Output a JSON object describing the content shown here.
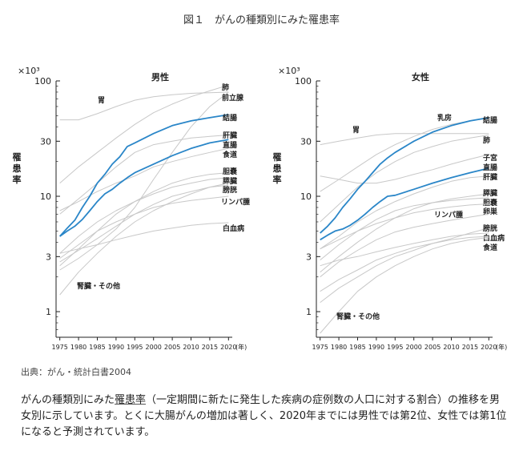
{
  "title": "図１　がんの種類別にみた罹患率",
  "source": "出典：がん・統計白書2004",
  "caption": {
    "before": "がんの種類別にみた",
    "term": "罹患率",
    "after": "（一定期間に新たに発生した疾病の症例数の人口に対する割合）の推移を男女別に示しています。とくに大腸がんの増加は著しく、2020年までには男性では第2位、女性では第1位になると予測されています。"
  },
  "colors": {
    "highlight": "#2a86c8",
    "other": "#c8c8c8",
    "axis": "#222222"
  },
  "chart_data": [
    {
      "type": "line",
      "title": "男性",
      "ylabel": "罹患率",
      "yunit": "×10³",
      "xunit": "(年)",
      "yscale": "log",
      "ylim": [
        0.6,
        100
      ],
      "xlim": [
        1974,
        2021
      ],
      "yticks": [
        1,
        3,
        10,
        30,
        100
      ],
      "xticks": [
        1975,
        1980,
        1985,
        1990,
        1995,
        2000,
        2005,
        2010,
        2015,
        2020
      ],
      "series": [
        {
          "name": "胃",
          "highlight": false,
          "x": [
            1975,
            1980,
            1985,
            1990,
            1995,
            2000,
            2005,
            2010,
            2015,
            2020
          ],
          "y": [
            46,
            46,
            52,
            60,
            68,
            73,
            76,
            78,
            79,
            80
          ]
        },
        {
          "name": "肺",
          "highlight": false,
          "x": [
            1975,
            1980,
            1985,
            1990,
            1995,
            2000,
            2005,
            2010,
            2015,
            2020
          ],
          "y": [
            13,
            18,
            24,
            32,
            42,
            53,
            63,
            73,
            82,
            92
          ]
        },
        {
          "name": "前立腺",
          "highlight": false,
          "x": [
            1975,
            1980,
            1985,
            1990,
            1995,
            2000,
            2005,
            2010,
            2015,
            2020
          ],
          "y": [
            2.3,
            2.9,
            3.8,
            5.2,
            8,
            14,
            24,
            40,
            60,
            80
          ]
        },
        {
          "name": "結腸",
          "highlight": true,
          "x": [
            1975,
            1977,
            1979,
            1981,
            1983,
            1985,
            1987,
            1989,
            1991,
            1993,
            1995,
            2000,
            2005,
            2010,
            2015,
            2020
          ],
          "y": [
            4.5,
            5.3,
            6.2,
            8,
            10,
            13,
            15.5,
            19,
            22,
            27,
            29,
            35,
            41,
            45,
            48,
            51
          ]
        },
        {
          "name": "肝臓",
          "highlight": false,
          "x": [
            1975,
            1980,
            1985,
            1990,
            1995,
            2000,
            2005,
            2010,
            2015,
            2020
          ],
          "y": [
            7,
            9.5,
            13,
            18,
            24,
            28,
            30,
            32,
            33,
            34
          ]
        },
        {
          "name": "直腸",
          "highlight": true,
          "x": [
            1975,
            1977,
            1979,
            1981,
            1983,
            1985,
            1987,
            1989,
            1991,
            1993,
            1995,
            2000,
            2005,
            2010,
            2015,
            2020
          ],
          "y": [
            4.5,
            5,
            5.5,
            6.3,
            7.5,
            9,
            10.5,
            11.5,
            13,
            14.5,
            16,
            19,
            22.5,
            26,
            29,
            31
          ]
        },
        {
          "name": "食道",
          "highlight": false,
          "x": [
            1975,
            1980,
            1985,
            1990,
            1995,
            2000,
            2005,
            2010,
            2015,
            2020
          ],
          "y": [
            7.5,
            9,
            11,
            13,
            15,
            18,
            20,
            22,
            24,
            26
          ]
        },
        {
          "name": "胆嚢",
          "highlight": false,
          "x": [
            1975,
            1980,
            1985,
            1990,
            1995,
            2000,
            2005,
            2010,
            2015,
            2020
          ],
          "y": [
            2.5,
            3.5,
            5,
            7,
            9,
            11,
            13,
            14.5,
            15.5,
            16
          ]
        },
        {
          "name": "膵臓",
          "highlight": false,
          "x": [
            1975,
            1980,
            1985,
            1990,
            1995,
            2000,
            2005,
            2010,
            2015,
            2020
          ],
          "y": [
            3.2,
            4.5,
            6,
            7.5,
            9,
            10.5,
            12,
            13,
            14,
            14.5
          ]
        },
        {
          "name": "膀胱",
          "highlight": false,
          "x": [
            1975,
            1980,
            1985,
            1990,
            1995,
            2000,
            2005,
            2010,
            2015,
            2020
          ],
          "y": [
            2.7,
            3.4,
            4.3,
            5.5,
            7,
            8.5,
            10,
            11,
            12,
            12.5
          ]
        },
        {
          "name": "リンパ腫",
          "highlight": false,
          "x": [
            1975,
            1980,
            1985,
            1990,
            1995,
            2000,
            2005,
            2010,
            2015,
            2020
          ],
          "y": [
            2.9,
            3.8,
            5,
            6,
            7,
            8,
            8.7,
            9.2,
            9.6,
            10
          ]
        },
        {
          "name": "白血病",
          "highlight": false,
          "x": [
            1975,
            1980,
            1985,
            1990,
            1995,
            2000,
            2005,
            2010,
            2015,
            2020
          ],
          "y": [
            3.2,
            3.5,
            3.8,
            4.2,
            4.6,
            5,
            5.3,
            5.6,
            5.8,
            5.9
          ]
        },
        {
          "name": "腎臓・その他",
          "highlight": false,
          "x": [
            1975,
            1980,
            1985,
            1990,
            1995,
            2000,
            2005,
            2010,
            2015,
            2020
          ],
          "y": [
            1.4,
            2.2,
            3.2,
            4.5,
            6,
            7.5,
            9,
            10.5,
            12,
            13
          ]
        }
      ]
    },
    {
      "type": "line",
      "title": "女性",
      "ylabel": "罹患率",
      "yunit": "×10³",
      "xunit": "(年)",
      "yscale": "log",
      "ylim": [
        0.6,
        100
      ],
      "xlim": [
        1974,
        2021
      ],
      "yticks": [
        1,
        3,
        10,
        30,
        100
      ],
      "xticks": [
        1975,
        1980,
        1985,
        1990,
        1995,
        2000,
        2005,
        2010,
        2015,
        2020
      ],
      "series": [
        {
          "name": "胃",
          "highlight": false,
          "x": [
            1975,
            1980,
            1985,
            1990,
            1995,
            2000,
            2005,
            2010,
            2015,
            2020
          ],
          "y": [
            28,
            30,
            32,
            34,
            35,
            35,
            35,
            35,
            35,
            35
          ]
        },
        {
          "name": "乳房",
          "highlight": false,
          "x": [
            1975,
            1980,
            1985,
            1990,
            1995,
            2000,
            2005,
            2010,
            2015,
            2020
          ],
          "y": [
            11,
            14,
            18,
            23,
            28,
            33,
            38,
            42,
            45,
            48
          ]
        },
        {
          "name": "結腸",
          "highlight": true,
          "x": [
            1975,
            1977,
            1979,
            1981,
            1983,
            1985,
            1987,
            1989,
            1991,
            1993,
            1995,
            2000,
            2005,
            2010,
            2015,
            2020
          ],
          "y": [
            4.8,
            5.5,
            6.5,
            8,
            9.5,
            11.5,
            13.5,
            16,
            19,
            21.5,
            24,
            30,
            36,
            41,
            45,
            48
          ]
        },
        {
          "name": "肺",
          "highlight": false,
          "x": [
            1975,
            1980,
            1985,
            1990,
            1995,
            2000,
            2005,
            2010,
            2015,
            2020
          ],
          "y": [
            6,
            8.5,
            12,
            16,
            20,
            24,
            27,
            30,
            32,
            34
          ]
        },
        {
          "name": "子宮",
          "highlight": false,
          "x": [
            1975,
            1980,
            1985,
            1990,
            1995,
            2000,
            2005,
            2010,
            2015,
            2020
          ],
          "y": [
            15,
            14,
            13,
            13,
            14,
            15.5,
            17,
            19,
            21,
            23
          ]
        },
        {
          "name": "直腸",
          "highlight": true,
          "x": [
            1975,
            1977,
            1979,
            1981,
            1983,
            1985,
            1987,
            1989,
            1991,
            1993,
            1995,
            2000,
            2005,
            2010,
            2015,
            2020
          ],
          "y": [
            4.2,
            4.6,
            5,
            5.2,
            5.6,
            6.2,
            7,
            8,
            9,
            10,
            10.2,
            11.5,
            13,
            14.5,
            16,
            17.5
          ]
        },
        {
          "name": "肝臓",
          "highlight": false,
          "x": [
            1975,
            1980,
            1985,
            1990,
            1995,
            2000,
            2005,
            2010,
            2015,
            2020
          ],
          "y": [
            3.5,
            4.5,
            6,
            7.5,
            9,
            10.5,
            12,
            13.5,
            14.5,
            15
          ]
        },
        {
          "name": "膵臓",
          "highlight": false,
          "x": [
            1975,
            1980,
            1985,
            1990,
            1995,
            2000,
            2005,
            2010,
            2015,
            2020
          ],
          "y": [
            2.2,
            3,
            4,
            5.2,
            6.5,
            7.8,
            8.8,
            9.5,
            10,
            10.5
          ]
        },
        {
          "name": "胆嚢",
          "highlight": false,
          "x": [
            1975,
            1980,
            1985,
            1990,
            1995,
            2000,
            2005,
            2010,
            2015,
            2020
          ],
          "y": [
            2.8,
            3.8,
            5,
            6.3,
            7.5,
            8.3,
            8.8,
            9.2,
            9.5,
            9.7
          ]
        },
        {
          "name": "卵巣",
          "highlight": false,
          "x": [
            1975,
            1980,
            1985,
            1990,
            1995,
            2000,
            2005,
            2010,
            2015,
            2020
          ],
          "y": [
            3.5,
            4.2,
            5,
            5.8,
            6.5,
            7.2,
            7.7,
            8.1,
            8.4,
            8.6
          ]
        },
        {
          "name": "リンパ腫",
          "highlight": false,
          "x": [
            1975,
            1980,
            1985,
            1990,
            1995,
            2000,
            2005,
            2010,
            2015,
            2020
          ],
          "y": [
            2,
            2.7,
            3.4,
            4.2,
            4.9,
            5.4,
            5.8,
            6.2,
            6.6,
            7
          ]
        },
        {
          "name": "膀胱",
          "highlight": false,
          "x": [
            1975,
            1980,
            1985,
            1990,
            1995,
            2000,
            2005,
            2010,
            2015,
            2020
          ],
          "y": [
            1.2,
            1.6,
            2,
            2.5,
            3,
            3.4,
            3.9,
            4.3,
            4.8,
            5.3
          ]
        },
        {
          "name": "白血病",
          "highlight": false,
          "x": [
            1975,
            1980,
            1985,
            1990,
            1995,
            2000,
            2005,
            2010,
            2015,
            2020
          ],
          "y": [
            2.5,
            2.8,
            3,
            3.3,
            3.6,
            3.9,
            4.2,
            4.5,
            4.7,
            4.8
          ]
        },
        {
          "name": "食道",
          "highlight": false,
          "x": [
            1975,
            1980,
            1985,
            1990,
            1995,
            2000,
            2005,
            2010,
            2015,
            2020
          ],
          "y": [
            1.5,
            1.9,
            2.3,
            2.8,
            3.2,
            3.6,
            3.9,
            4.2,
            4.4,
            4.5
          ]
        },
        {
          "name": "腎臓・その他",
          "highlight": false,
          "x": [
            1975,
            1980,
            1985,
            1990,
            1995,
            2000,
            2005,
            2010,
            2015,
            2020
          ],
          "y": [
            0.65,
            1,
            1.5,
            2,
            2.5,
            3,
            3.5,
            3.9,
            4.2,
            4.4
          ]
        }
      ]
    }
  ]
}
